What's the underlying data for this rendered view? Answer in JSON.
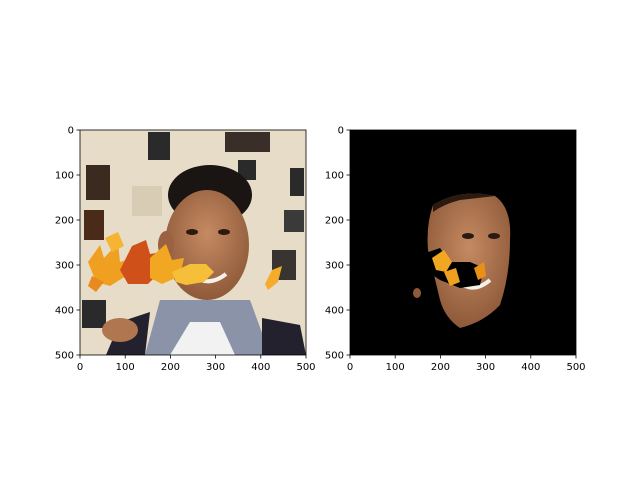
{
  "chart_data": [
    {
      "type": "image",
      "content": "photo of a smiling man with autumn maple leaves overlaid around the mouth area",
      "xlim": [
        0,
        500
      ],
      "ylim": [
        500,
        0
      ],
      "xticks": [
        0,
        100,
        200,
        300,
        400,
        500
      ],
      "yticks": [
        0,
        100,
        200,
        300,
        400,
        500
      ]
    },
    {
      "type": "image",
      "content": "segmented face mask on black background, leaf-occluded regions removed",
      "xlim": [
        0,
        500
      ],
      "ylim": [
        500,
        0
      ],
      "xticks": [
        0,
        100,
        200,
        300,
        400,
        500
      ],
      "yticks": [
        0,
        100,
        200,
        300,
        400,
        500
      ]
    }
  ],
  "colors": {
    "mask_background": "#000000",
    "skin": "#b07650",
    "leaf_orange": "#f0a020",
    "leaf_red": "#d0501a",
    "backdrop": "#e8ddc8",
    "shirt": "#8a93a8"
  }
}
